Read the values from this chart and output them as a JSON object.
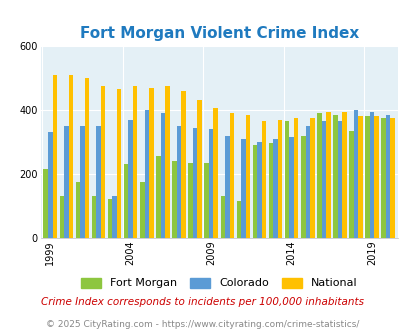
{
  "title": "Fort Morgan Violent Crime Index",
  "years": [
    1999,
    2000,
    2001,
    2002,
    2003,
    2004,
    2005,
    2006,
    2007,
    2008,
    2009,
    2010,
    2011,
    2012,
    2013,
    2014,
    2015,
    2016,
    2017,
    2018,
    2019,
    2020
  ],
  "fort_morgan": [
    215,
    130,
    175,
    130,
    120,
    230,
    175,
    255,
    240,
    235,
    235,
    130,
    115,
    290,
    295,
    365,
    320,
    390,
    385,
    335,
    380,
    375
  ],
  "colorado": [
    330,
    350,
    350,
    350,
    130,
    370,
    400,
    390,
    350,
    345,
    340,
    320,
    310,
    300,
    310,
    315,
    350,
    365,
    365,
    400,
    395,
    385
  ],
  "national": [
    510,
    510,
    500,
    475,
    465,
    475,
    470,
    475,
    460,
    430,
    405,
    390,
    385,
    365,
    370,
    375,
    375,
    395,
    395,
    380,
    380,
    375
  ],
  "bar_colors": {
    "fort_morgan": "#8dc63f",
    "colorado": "#5b9bd5",
    "national": "#ffc000"
  },
  "bg_color": "#e4f0f6",
  "outer_bg": "#ffffff",
  "ylim": [
    0,
    600
  ],
  "yticks": [
    0,
    200,
    400,
    600
  ],
  "xlabel_ticks": [
    1999,
    2004,
    2009,
    2014,
    2019
  ],
  "legend_labels": [
    "Fort Morgan",
    "Colorado",
    "National"
  ],
  "footnote1": "Crime Index corresponds to incidents per 100,000 inhabitants",
  "footnote2": "© 2025 CityRating.com - https://www.cityrating.com/crime-statistics/",
  "title_color": "#1f7abf",
  "footnote1_color": "#cc0000",
  "footnote2_color": "#888888",
  "title_fontsize": 11,
  "tick_fontsize": 7,
  "legend_fontsize": 8,
  "footnote1_fontsize": 7.5,
  "footnote2_fontsize": 6.5
}
